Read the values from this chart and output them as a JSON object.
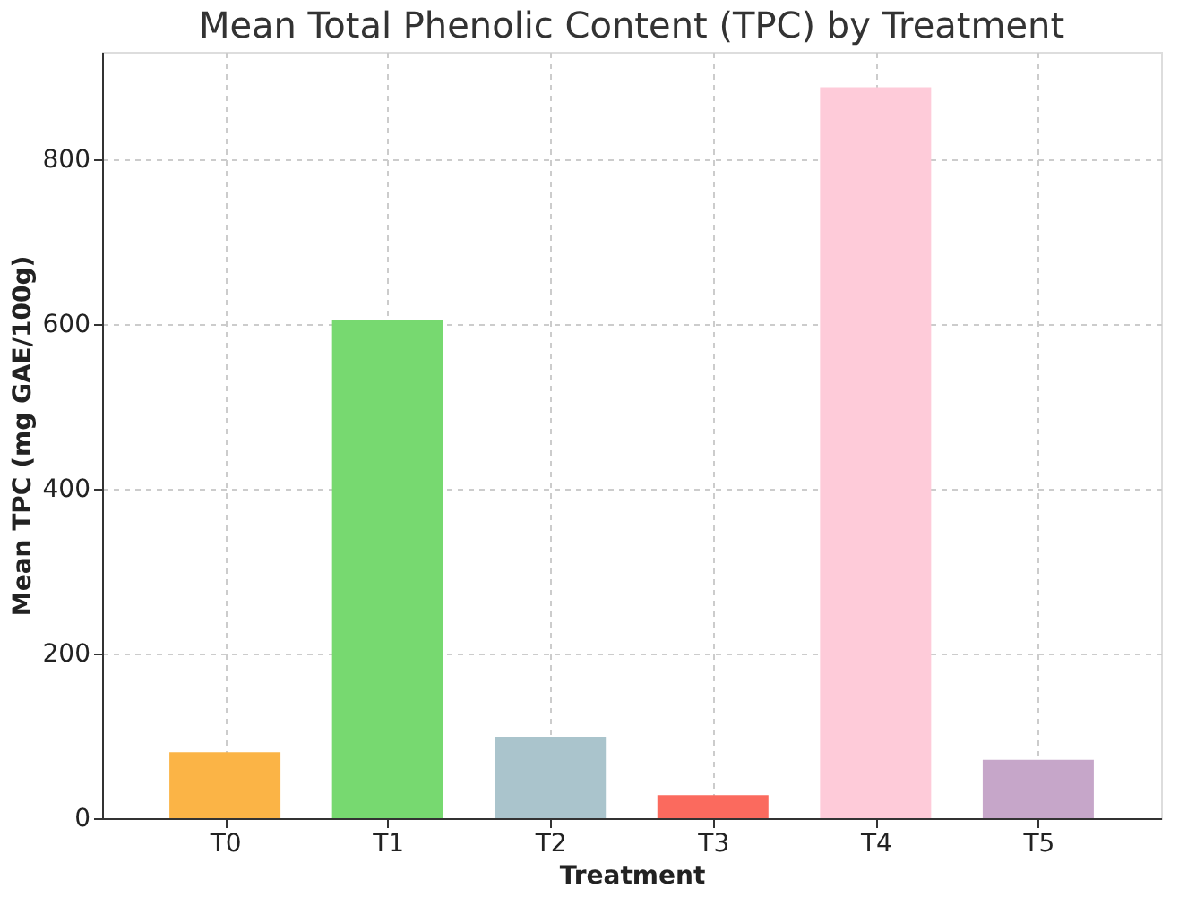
{
  "chart_data": {
    "type": "bar",
    "title": "Mean Total Phenolic Content (TPC) by Treatment",
    "xlabel": "Treatment",
    "ylabel": "Mean TPC (mg GAE/100g)",
    "categories": [
      "T0",
      "T1",
      "T2",
      "T3",
      "T4",
      "T5"
    ],
    "values": [
      80,
      605,
      99,
      28,
      887,
      71
    ],
    "colors": [
      "#fbb446",
      "#77d970",
      "#aac4cc",
      "#fb6a5e",
      "#fecbd9",
      "#c6a6c9"
    ],
    "ylim": [
      0,
      930
    ],
    "yticks": [
      0,
      200,
      400,
      600,
      800
    ],
    "grid": true
  }
}
